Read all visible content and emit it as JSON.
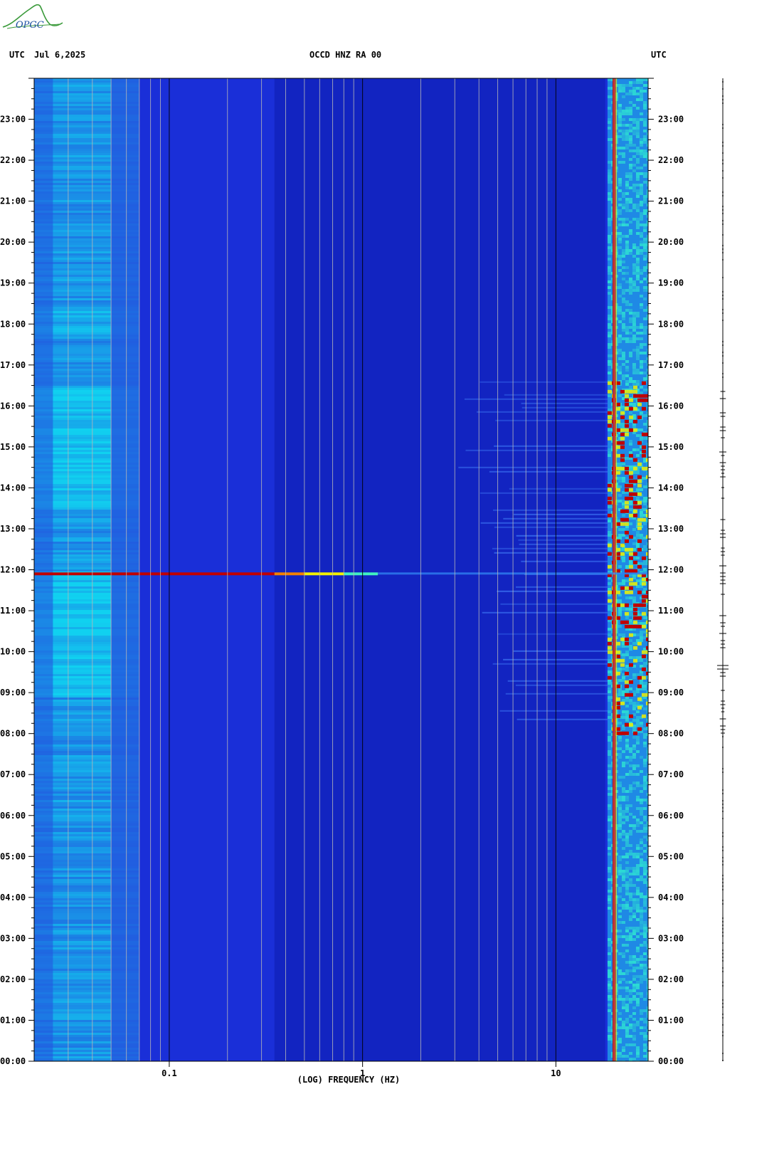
{
  "header": {
    "left_label": "UTC",
    "date": "Jul 6,2025",
    "station": "OCCD HNZ RA 00",
    "right_label": "UTC"
  },
  "logo_text": "OPGC",
  "chart_data": {
    "type": "heatmap",
    "title": "OCCD HNZ RA 00",
    "xlabel": "(LOG) FREQUENCY (HZ)",
    "ylabel": "UTC",
    "x_scale": "log",
    "xlim": [
      0.02,
      30
    ],
    "x_ticks": [
      {
        "value": 0.1,
        "label": "0.1"
      },
      {
        "value": 1,
        "label": "1"
      },
      {
        "value": 10,
        "label": "10"
      }
    ],
    "y_ticks": [
      "00:00",
      "01:00",
      "02:00",
      "03:00",
      "04:00",
      "05:00",
      "06:00",
      "07:00",
      "08:00",
      "09:00",
      "10:00",
      "11:00",
      "12:00",
      "13:00",
      "14:00",
      "15:00",
      "16:00",
      "17:00",
      "18:00",
      "19:00",
      "20:00",
      "21:00",
      "22:00",
      "23:00"
    ],
    "ylim_hours": [
      0,
      24
    ],
    "colors": {
      "background": "#1a2fd8",
      "deep": "#1020b8",
      "low_band": "#2a7ae8",
      "bright_band": "#10d8f0",
      "strong": "#c00000",
      "mid": "#f0f000"
    },
    "features": [
      {
        "name": "persistent line",
        "freq_hz": 20,
        "time_hours": [
          0,
          24
        ]
      },
      {
        "name": "broadband event",
        "time_hours": 11.9,
        "freq_hz": [
          0.02,
          3
        ]
      },
      {
        "name": "daytime noise",
        "time_hours": [
          8,
          16.6
        ],
        "freq_hz": [
          3,
          30
        ]
      }
    ]
  }
}
